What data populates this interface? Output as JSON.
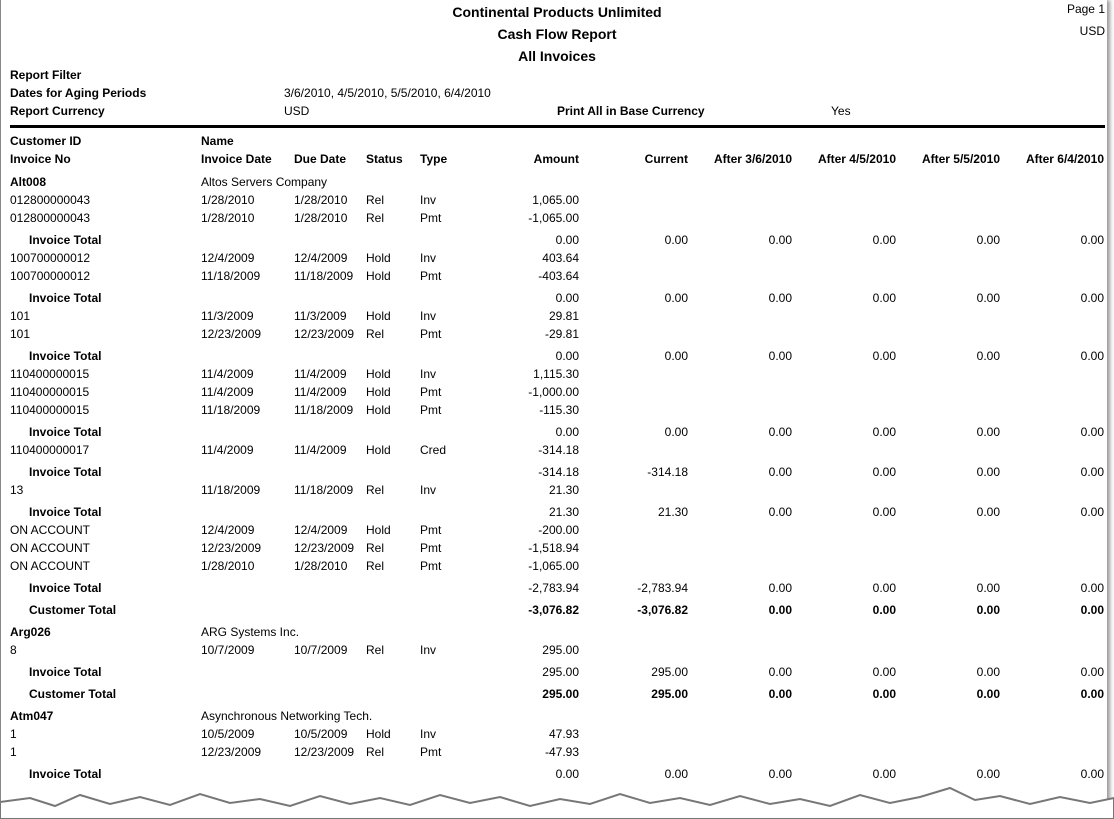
{
  "header": {
    "company": "Continental Products Unlimited",
    "title": "Cash Flow Report",
    "subtitle": "All Invoices",
    "page": "Page 1",
    "currency": "USD"
  },
  "filter": {
    "label": "Report Filter",
    "dates_label": "Dates for Aging Periods",
    "dates": "3/6/2010, 4/5/2010, 5/5/2010, 6/4/2010",
    "currency_label": "Report Currency",
    "currency": "USD",
    "base_label": "Print All in Base Currency",
    "base": "Yes"
  },
  "columns": {
    "row1": [
      "Customer ID",
      "Name"
    ],
    "row2": [
      "Invoice No",
      "Invoice Date",
      "Due Date",
      "Status",
      "Type",
      "Amount",
      "Current",
      "After 3/6/2010",
      "After 4/5/2010",
      "After 5/5/2010",
      "After 6/4/2010"
    ]
  },
  "customers": [
    {
      "id": "Alt008",
      "name": "Altos Servers Company",
      "groups": [
        {
          "lines": [
            [
              "012800000043",
              "1/28/2010",
              "1/28/2010",
              "Rel",
              "Inv",
              "1,065.00"
            ],
            [
              "012800000043",
              "1/28/2010",
              "1/28/2010",
              "Rel",
              "Pmt",
              "-1,065.00"
            ]
          ],
          "total": {
            "label": "Invoice Total",
            "values": [
              "0.00",
              "0.00",
              "0.00",
              "0.00",
              "0.00",
              "0.00"
            ]
          }
        },
        {
          "lines": [
            [
              "100700000012",
              "12/4/2009",
              "12/4/2009",
              "Hold",
              "Inv",
              "403.64"
            ],
            [
              "100700000012",
              "11/18/2009",
              "11/18/2009",
              "Hold",
              "Pmt",
              "-403.64"
            ]
          ],
          "total": {
            "label": "Invoice Total",
            "values": [
              "0.00",
              "0.00",
              "0.00",
              "0.00",
              "0.00",
              "0.00"
            ]
          }
        },
        {
          "lines": [
            [
              "101",
              "11/3/2009",
              "11/3/2009",
              "Hold",
              "Inv",
              "29.81"
            ],
            [
              "101",
              "12/23/2009",
              "12/23/2009",
              "Rel",
              "Pmt",
              "-29.81"
            ]
          ],
          "total": {
            "label": "Invoice Total",
            "values": [
              "0.00",
              "0.00",
              "0.00",
              "0.00",
              "0.00",
              "0.00"
            ]
          }
        },
        {
          "lines": [
            [
              "110400000015",
              "11/4/2009",
              "11/4/2009",
              "Hold",
              "Inv",
              "1,115.30"
            ],
            [
              "110400000015",
              "11/4/2009",
              "11/4/2009",
              "Hold",
              "Pmt",
              "-1,000.00"
            ],
            [
              "110400000015",
              "11/18/2009",
              "11/18/2009",
              "Hold",
              "Pmt",
              "-115.30"
            ]
          ],
          "total": {
            "label": "Invoice Total",
            "values": [
              "0.00",
              "0.00",
              "0.00",
              "0.00",
              "0.00",
              "0.00"
            ]
          }
        },
        {
          "lines": [
            [
              "110400000017",
              "11/4/2009",
              "11/4/2009",
              "Hold",
              "Cred",
              "-314.18"
            ]
          ],
          "total": {
            "label": "Invoice Total",
            "values": [
              "-314.18",
              "-314.18",
              "0.00",
              "0.00",
              "0.00",
              "0.00"
            ]
          }
        },
        {
          "lines": [
            [
              "13",
              "11/18/2009",
              "11/18/2009",
              "Rel",
              "Inv",
              "21.30"
            ]
          ],
          "total": {
            "label": "Invoice Total",
            "values": [
              "21.30",
              "21.30",
              "0.00",
              "0.00",
              "0.00",
              "0.00"
            ]
          }
        },
        {
          "lines": [
            [
              "ON ACCOUNT",
              "12/4/2009",
              "12/4/2009",
              "Hold",
              "Pmt",
              "-200.00"
            ],
            [
              "ON ACCOUNT",
              "12/23/2009",
              "12/23/2009",
              "Rel",
              "Pmt",
              "-1,518.94"
            ],
            [
              "ON ACCOUNT",
              "1/28/2010",
              "1/28/2010",
              "Rel",
              "Pmt",
              "-1,065.00"
            ]
          ],
          "total": {
            "label": "Invoice Total",
            "values": [
              "-2,783.94",
              "-2,783.94",
              "0.00",
              "0.00",
              "0.00",
              "0.00"
            ]
          }
        }
      ],
      "total": {
        "label": "Customer Total",
        "values": [
          "-3,076.82",
          "-3,076.82",
          "0.00",
          "0.00",
          "0.00",
          "0.00"
        ]
      }
    },
    {
      "id": "Arg026",
      "name": "ARG Systems Inc.",
      "groups": [
        {
          "lines": [
            [
              "8",
              "10/7/2009",
              "10/7/2009",
              "Rel",
              "Inv",
              "295.00"
            ]
          ],
          "total": {
            "label": "Invoice Total",
            "values": [
              "295.00",
              "295.00",
              "0.00",
              "0.00",
              "0.00",
              "0.00"
            ]
          }
        }
      ],
      "total": {
        "label": "Customer Total",
        "values": [
          "295.00",
          "295.00",
          "0.00",
          "0.00",
          "0.00",
          "0.00"
        ]
      }
    },
    {
      "id": "Atm047",
      "name": "Asynchronous Networking Tech.",
      "groups": [
        {
          "lines": [
            [
              "1",
              "10/5/2009",
              "10/5/2009",
              "Hold",
              "Inv",
              "47.93"
            ],
            [
              "1",
              "12/23/2009",
              "12/23/2009",
              "Rel",
              "Pmt",
              "-47.93"
            ]
          ],
          "total": {
            "label": "Invoice Total",
            "values": [
              "0.00",
              "0.00",
              "0.00",
              "0.00",
              "0.00",
              "0.00"
            ]
          }
        }
      ]
    }
  ]
}
